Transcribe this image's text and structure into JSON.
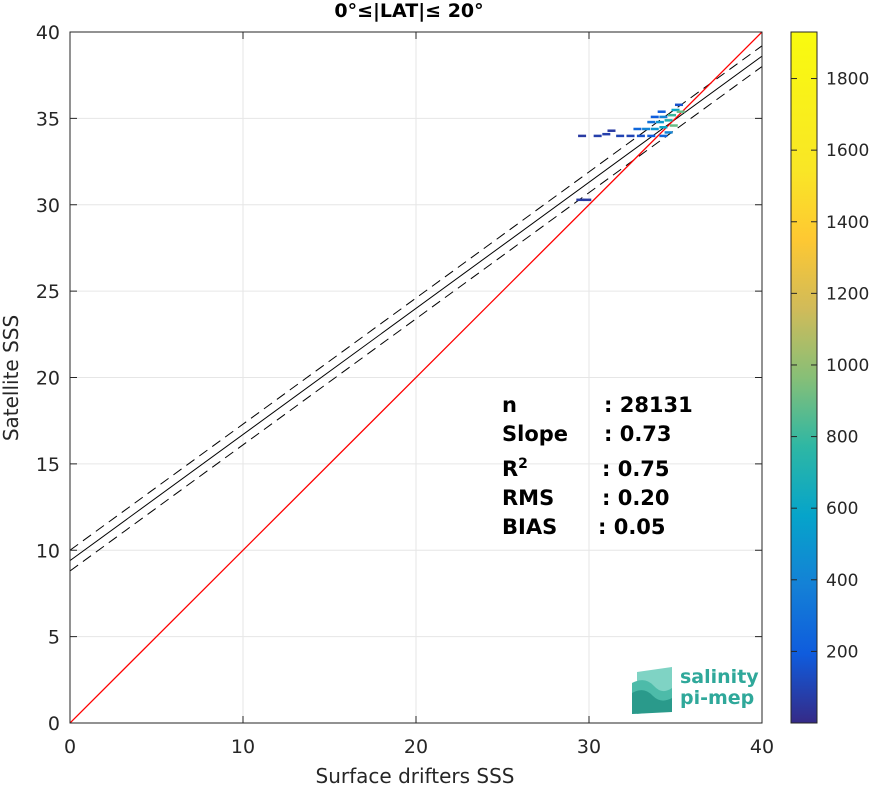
{
  "chart_data": {
    "type": "scatter",
    "title": "0°≤|LAT|≤ 20°",
    "xlabel": "Surface drifters SSS",
    "ylabel": "Satellite SSS",
    "xlim": [
      0,
      40
    ],
    "ylim": [
      0,
      40
    ],
    "xticks": [
      "0",
      "10",
      "20",
      "30",
      "40"
    ],
    "yticks": [
      "0",
      "5",
      "10",
      "15",
      "20",
      "25",
      "30",
      "35",
      "40"
    ],
    "grid": true,
    "regression": {
      "slope": 0.73,
      "intercept": 9.4,
      "ci_offset": 0.6
    },
    "identity_line": true,
    "density_points": [
      {
        "x": 29.5,
        "y": 30.3,
        "c": 60
      },
      {
        "x": 29.9,
        "y": 30.3,
        "c": 60
      },
      {
        "x": 29.6,
        "y": 34.0,
        "c": 60
      },
      {
        "x": 30.5,
        "y": 34.0,
        "c": 80
      },
      {
        "x": 31.0,
        "y": 34.1,
        "c": 80
      },
      {
        "x": 31.3,
        "y": 34.3,
        "c": 60
      },
      {
        "x": 31.8,
        "y": 34.0,
        "c": 100
      },
      {
        "x": 32.4,
        "y": 34.0,
        "c": 100
      },
      {
        "x": 33.0,
        "y": 34.0,
        "c": 150
      },
      {
        "x": 33.6,
        "y": 34.0,
        "c": 200
      },
      {
        "x": 34.3,
        "y": 34.0,
        "c": 250
      },
      {
        "x": 32.8,
        "y": 34.4,
        "c": 250
      },
      {
        "x": 33.3,
        "y": 34.4,
        "c": 400
      },
      {
        "x": 33.8,
        "y": 34.4,
        "c": 500
      },
      {
        "x": 34.3,
        "y": 34.5,
        "c": 600
      },
      {
        "x": 33.6,
        "y": 34.8,
        "c": 300
      },
      {
        "x": 34.1,
        "y": 34.8,
        "c": 500
      },
      {
        "x": 34.6,
        "y": 34.9,
        "c": 700
      },
      {
        "x": 33.8,
        "y": 35.1,
        "c": 200
      },
      {
        "x": 34.3,
        "y": 35.1,
        "c": 400
      },
      {
        "x": 34.8,
        "y": 35.2,
        "c": 800
      },
      {
        "x": 34.2,
        "y": 35.4,
        "c": 200
      },
      {
        "x": 35.0,
        "y": 35.5,
        "c": 600
      },
      {
        "x": 35.3,
        "y": 35.4,
        "c": 900
      },
      {
        "x": 35.2,
        "y": 35.8,
        "c": 150
      },
      {
        "x": 34.6,
        "y": 34.2,
        "c": 400
      },
      {
        "x": 34.9,
        "y": 34.6,
        "c": 900
      }
    ],
    "stats": [
      {
        "label": "n",
        "value": ": 28131"
      },
      {
        "label": "Slope",
        "value": ": 0.73"
      },
      {
        "label": "R",
        "sup": "2",
        "value": ": 0.75"
      },
      {
        "label": "RMS",
        "value": ": 0.20"
      },
      {
        "label": "BIAS",
        "value": ": 0.05"
      }
    ],
    "colorbar": {
      "min": 0,
      "max": 1930,
      "ticks": [
        "200",
        "400",
        "600",
        "800",
        "1000",
        "1200",
        "1400",
        "1600",
        "1800"
      ],
      "colormap": "parula"
    }
  },
  "logo": {
    "line1": "salinity",
    "line2": "pi-mep"
  },
  "colors": {
    "identity": "#ff0000",
    "regression": "#000000",
    "grid": "#e6e6e6"
  }
}
